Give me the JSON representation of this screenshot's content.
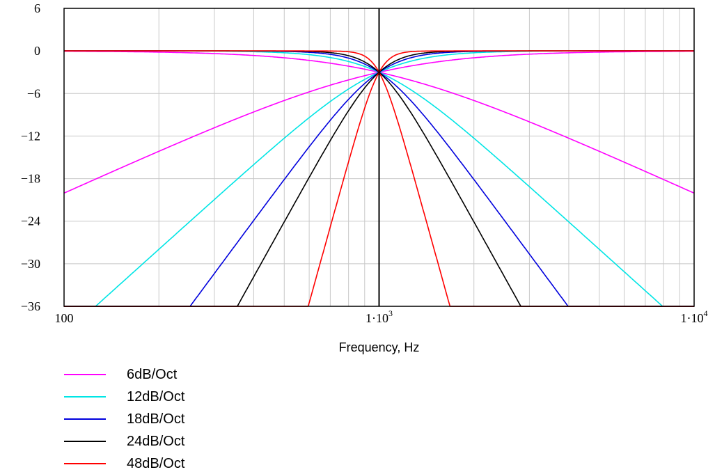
{
  "chart_data": {
    "type": "line",
    "title": "",
    "xlabel": "Frequency, Hz",
    "ylabel": "",
    "xscale": "log",
    "xlim": [
      100,
      10000
    ],
    "ylim": [
      -36,
      6
    ],
    "yticks": [
      "6",
      "0",
      "−6",
      "−12",
      "−18",
      "−24",
      "−30",
      "−36"
    ],
    "xticks": [
      {
        "base": "100",
        "exp": ""
      },
      {
        "base": "1·10",
        "exp": "3"
      },
      {
        "base": "1·10",
        "exp": "4"
      }
    ],
    "grid": true,
    "crossover_hz": 1000,
    "legend_position": "bottom-left",
    "series": [
      {
        "name": "6dB/Oct",
        "color": "#ff00ff",
        "order": 1
      },
      {
        "name": "12dB/Oct",
        "color": "#00e5e5",
        "order": 2
      },
      {
        "name": "18dB/Oct",
        "color": "#0000dd",
        "order": 3
      },
      {
        "name": "24dB/Oct",
        "color": "#000000",
        "order": 4
      },
      {
        "name": "48dB/Oct",
        "color": "#ff0000",
        "order": 8
      }
    ]
  }
}
